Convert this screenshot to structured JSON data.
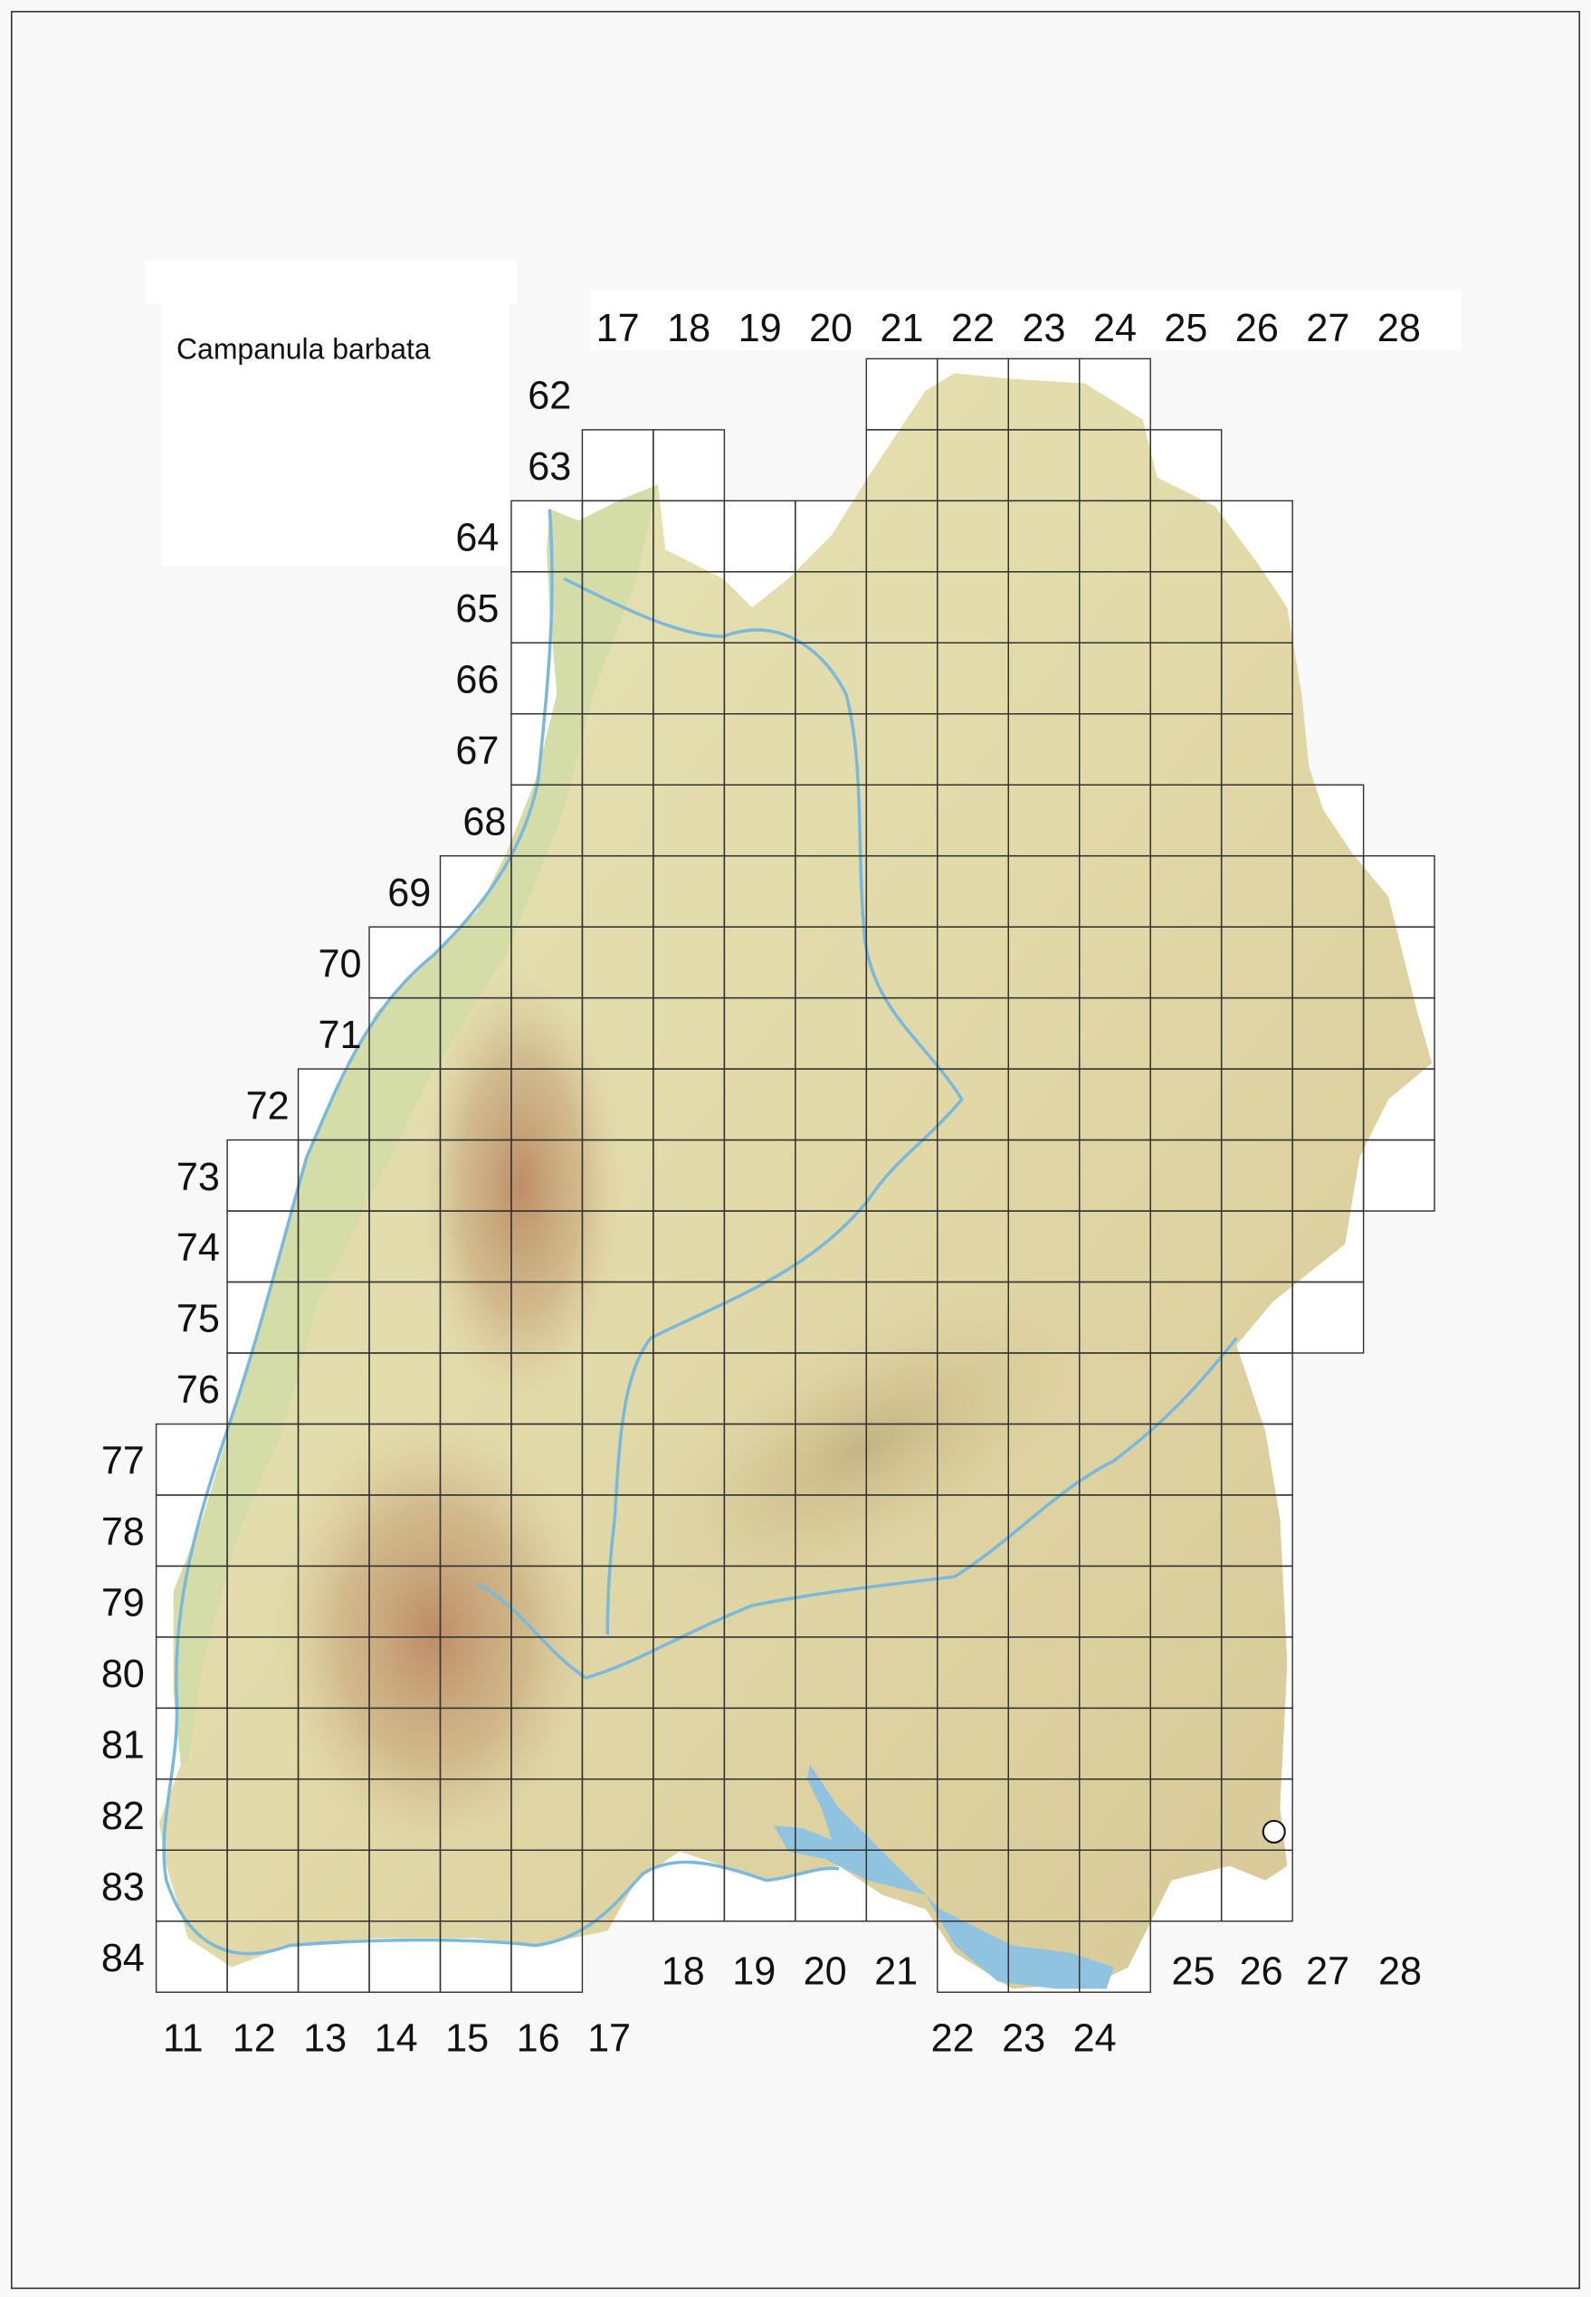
{
  "map": {
    "title": "Campanula barbata",
    "colors": {
      "land_low": "#e8e3b8",
      "land_mid": "#d9c99a",
      "mountain": "#b9825e",
      "rhine_plain": "#c9d8a0",
      "water": "#8fc3e0",
      "grid": "#333333",
      "background": "#f8f8f8"
    },
    "top_column_labels": [
      "17",
      "18",
      "19",
      "20",
      "21",
      "22",
      "23",
      "24",
      "25",
      "26",
      "27",
      "28"
    ],
    "row_labels": [
      "62",
      "63",
      "64",
      "65",
      "66",
      "67",
      "68",
      "69",
      "70",
      "71",
      "72",
      "73",
      "74",
      "75",
      "76",
      "77",
      "78",
      "79",
      "80",
      "81",
      "82",
      "83",
      "84"
    ],
    "bottom_column_labels_left": [
      "11",
      "12",
      "13",
      "14",
      "15",
      "16",
      "17"
    ],
    "bottom_column_labels_mid": [
      "18",
      "19",
      "20",
      "21"
    ],
    "bottom_column_labels_lake": [
      "22",
      "23",
      "24"
    ],
    "bottom_column_labels_right": [
      "25",
      "26",
      "27",
      "28"
    ],
    "grid_rows": [
      {
        "row": 62,
        "cols": [
          [
            21,
            24
          ]
        ]
      },
      {
        "row": 63,
        "cols": [
          [
            17,
            18
          ],
          [
            21,
            25
          ]
        ]
      },
      {
        "row": 64,
        "cols": [
          [
            16,
            26
          ]
        ]
      },
      {
        "row": 65,
        "cols": [
          [
            16,
            26
          ]
        ]
      },
      {
        "row": 66,
        "cols": [
          [
            16,
            26
          ]
        ]
      },
      {
        "row": 67,
        "cols": [
          [
            16,
            26
          ]
        ]
      },
      {
        "row": 68,
        "cols": [
          [
            16,
            27
          ]
        ]
      },
      {
        "row": 69,
        "cols": [
          [
            15,
            28
          ]
        ]
      },
      {
        "row": 70,
        "cols": [
          [
            14,
            28
          ]
        ]
      },
      {
        "row": 71,
        "cols": [
          [
            14,
            28
          ]
        ]
      },
      {
        "row": 72,
        "cols": [
          [
            13,
            28
          ]
        ]
      },
      {
        "row": 73,
        "cols": [
          [
            12,
            28
          ]
        ]
      },
      {
        "row": 74,
        "cols": [
          [
            12,
            27
          ]
        ]
      },
      {
        "row": 75,
        "cols": [
          [
            12,
            27
          ]
        ]
      },
      {
        "row": 76,
        "cols": [
          [
            12,
            26
          ]
        ]
      },
      {
        "row": 77,
        "cols": [
          [
            11,
            26
          ]
        ]
      },
      {
        "row": 78,
        "cols": [
          [
            11,
            26
          ]
        ]
      },
      {
        "row": 79,
        "cols": [
          [
            11,
            26
          ]
        ]
      },
      {
        "row": 80,
        "cols": [
          [
            11,
            26
          ]
        ]
      },
      {
        "row": 81,
        "cols": [
          [
            11,
            26
          ]
        ]
      },
      {
        "row": 82,
        "cols": [
          [
            11,
            26
          ]
        ]
      },
      {
        "row": 83,
        "cols": [
          [
            11,
            26
          ]
        ]
      },
      {
        "row": 84,
        "cols": [
          [
            11,
            16
          ],
          [
            22,
            24
          ]
        ]
      }
    ],
    "records": [
      {
        "col": 26,
        "row": 82,
        "symbol": "open-circle"
      }
    ]
  }
}
